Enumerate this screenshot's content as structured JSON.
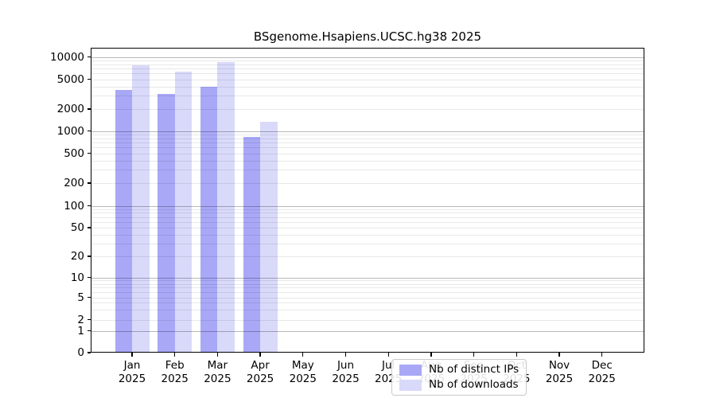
{
  "chart_data": {
    "type": "bar",
    "title": "BSgenome.Hsapiens.UCSC.hg38 2025",
    "categories": [
      "Jan 2025",
      "Feb 2025",
      "Mar 2025",
      "Apr 2025",
      "May 2025",
      "Jun 2025",
      "Jul 2025",
      "Aug 2025",
      "Sep 2025",
      "Oct 2025",
      "Nov 2025",
      "Dec 2025"
    ],
    "series": [
      {
        "name": "Nb of distinct IPs",
        "color": "#a8a8f7",
        "values": [
          3600,
          3200,
          4000,
          840,
          null,
          null,
          null,
          null,
          null,
          null,
          null,
          null
        ]
      },
      {
        "name": "Nb of downloads",
        "color": "#d9d9fa",
        "values": [
          7700,
          6400,
          8500,
          1320,
          null,
          null,
          null,
          null,
          null,
          null,
          null,
          null
        ]
      }
    ],
    "xlabel": "",
    "ylabel": "",
    "yscale": "symlog-like",
    "yticks": [
      0,
      1,
      2,
      5,
      10,
      20,
      50,
      100,
      200,
      500,
      1000,
      2000,
      5000,
      10000
    ],
    "ylim": [
      0,
      13000
    ],
    "grid": "horizontal, major (powers of 10) and minor (2-9 multiples)",
    "legend_position": "inside bottom-center",
    "colors": {
      "background": "#ffffff",
      "spine": "#000000",
      "major_grid": "#b8b8b8",
      "minor_grid": "#e9e9e9",
      "legend_border": "#c9c9c9"
    }
  }
}
